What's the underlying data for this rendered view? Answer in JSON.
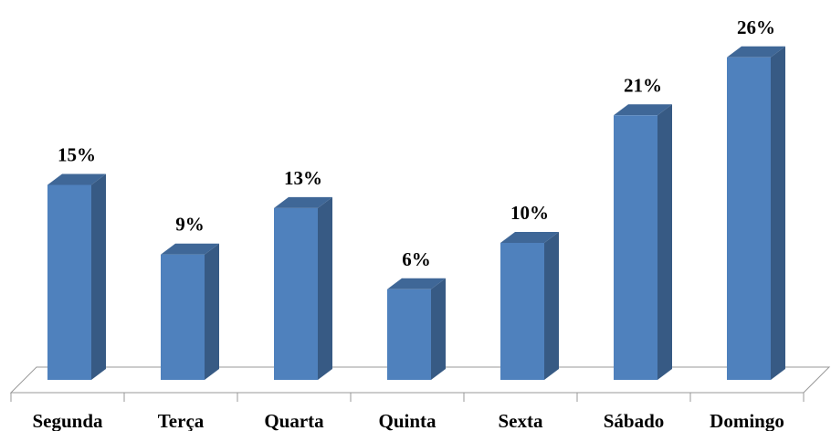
{
  "chart_data": {
    "type": "bar3d",
    "categories": [
      "Segunda",
      "Terça",
      "Quarta",
      "Quinta",
      "Sexta",
      "Sábado",
      "Domingo"
    ],
    "values": [
      15,
      9,
      13,
      6,
      10,
      21,
      26
    ],
    "value_labels": [
      "15%",
      "9%",
      "13%",
      "6%",
      "10%",
      "21%",
      "26%"
    ],
    "color": "#4f81bd"
  }
}
